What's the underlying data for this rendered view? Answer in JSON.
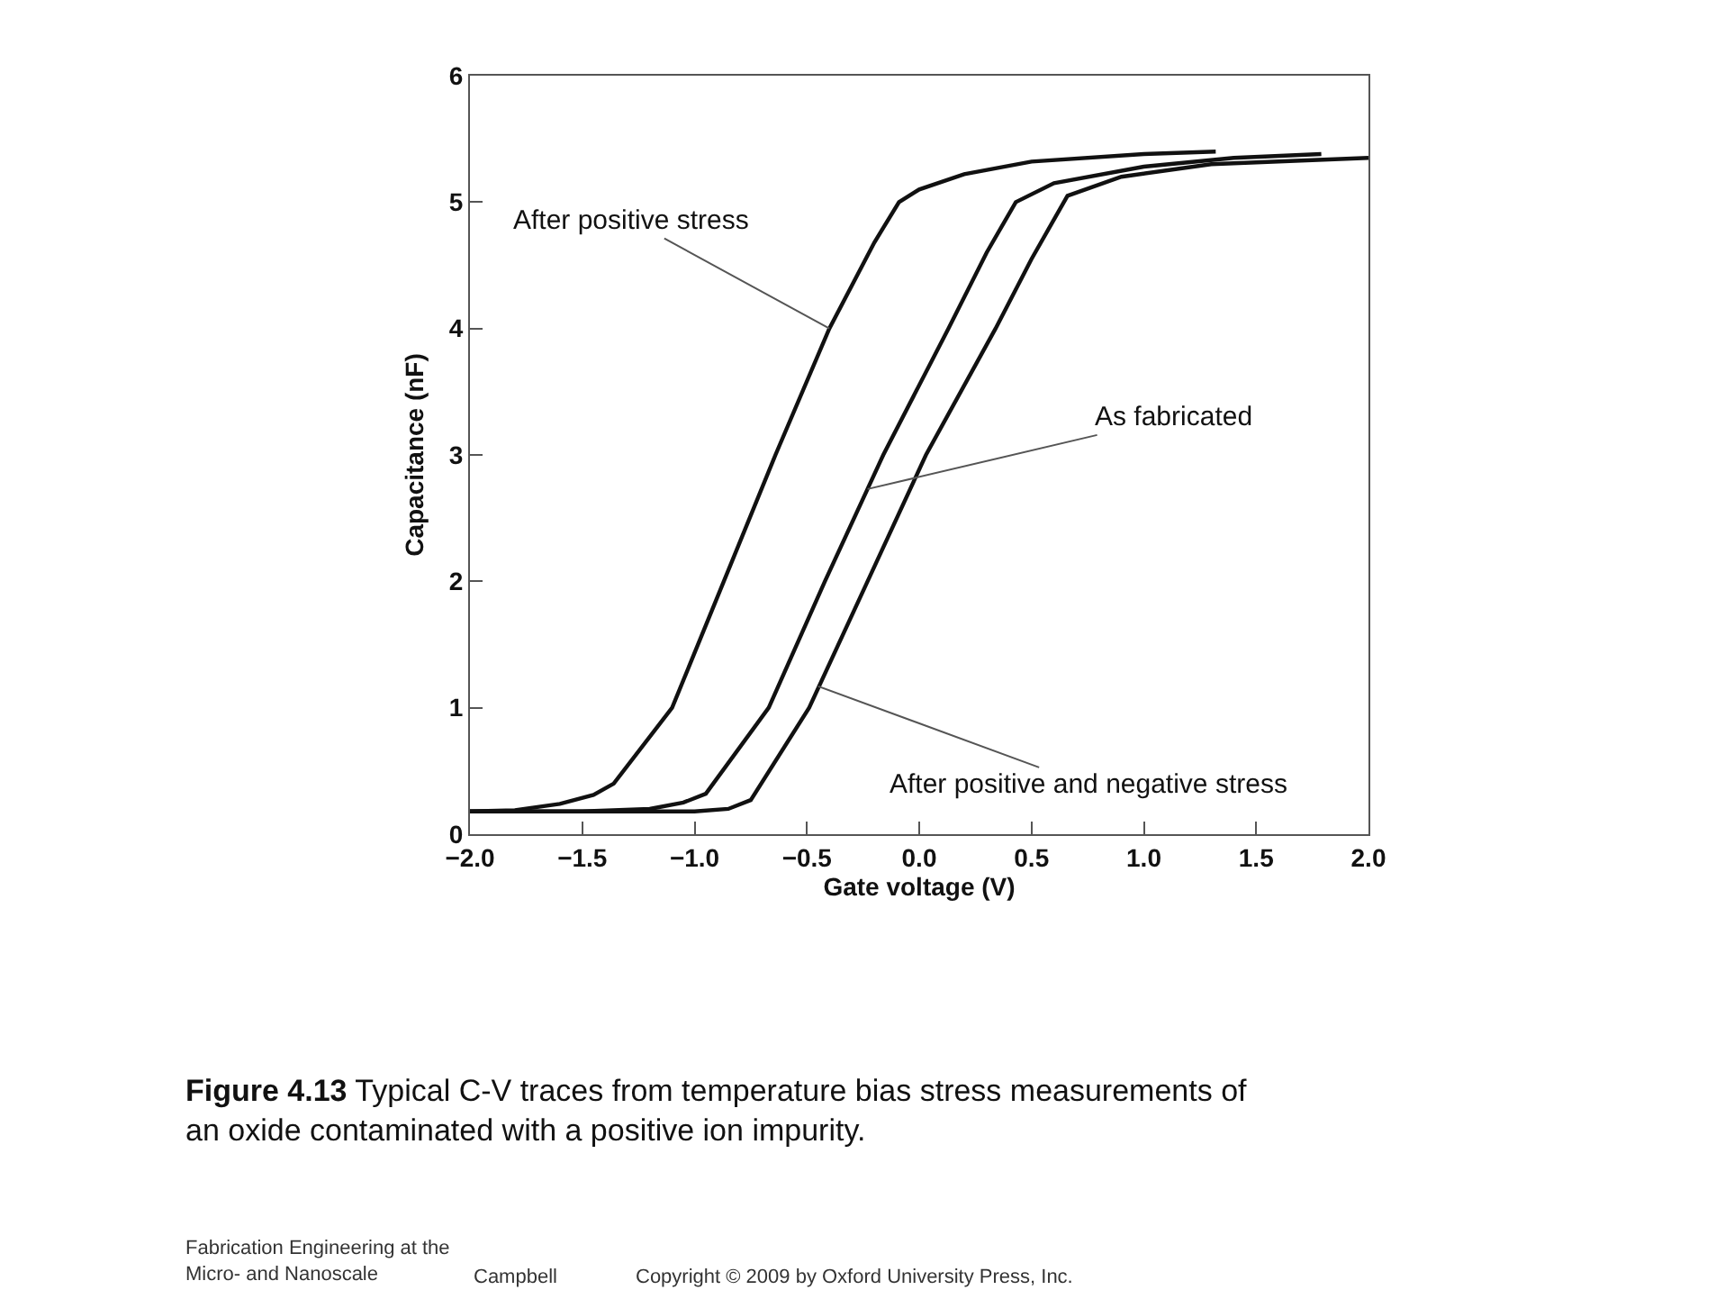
{
  "chart_data": {
    "type": "line",
    "xlabel": "Gate voltage (V)",
    "ylabel": "Capacitance (nF)",
    "xlim": [
      -2,
      2
    ],
    "xticks": [
      {
        "value": -2,
        "label": "−2.0"
      },
      {
        "value": -1.5,
        "label": "−1.5"
      },
      {
        "value": -1,
        "label": "−1.0"
      },
      {
        "value": -0.5,
        "label": "−0.5"
      },
      {
        "value": 0,
        "label": "0.0"
      },
      {
        "value": 0.5,
        "label": "0.5"
      },
      {
        "value": 1,
        "label": "1.0"
      },
      {
        "value": 1.5,
        "label": "1.5"
      },
      {
        "value": 2,
        "label": "2.0"
      }
    ],
    "ylim": [
      0,
      6
    ],
    "yticks": [
      0,
      1,
      2,
      3,
      4,
      5,
      6
    ],
    "grid": false,
    "marker": "none",
    "line_style": "solid",
    "series": [
      {
        "color": "#111111",
        "x": [
          -2,
          -1.8,
          -1.6,
          -1.45,
          -1.36,
          -1.1,
          -0.87,
          -0.64,
          -0.4,
          -0.2,
          -0.09,
          0,
          0.2,
          0.5,
          1,
          1.32
        ],
        "values": [
          0.18,
          0.19,
          0.24,
          0.31,
          0.4,
          1.0,
          2.0,
          3.0,
          4.0,
          4.68,
          5.0,
          5.1,
          5.22,
          5.32,
          5.38,
          5.4
        ]
      },
      {
        "color": "#111111",
        "x": [
          -2,
          -1.5,
          -1.2,
          -1.05,
          -0.95,
          -0.67,
          -0.42,
          -0.16,
          0.13,
          0.3,
          0.43,
          0.6,
          1,
          1.4,
          1.79
        ],
        "values": [
          0.18,
          0.18,
          0.2,
          0.25,
          0.32,
          1.0,
          2.0,
          3.0,
          4.0,
          4.6,
          5.0,
          5.15,
          5.28,
          5.35,
          5.38
        ]
      },
      {
        "color": "#111111",
        "x": [
          -2,
          -1,
          -0.85,
          -0.75,
          -0.49,
          -0.23,
          0.03,
          0.34,
          0.5,
          0.66,
          0.9,
          1.3,
          2
        ],
        "values": [
          0.18,
          0.18,
          0.2,
          0.27,
          1.0,
          2.0,
          3.0,
          4.0,
          4.55,
          5.05,
          5.2,
          5.3,
          5.35
        ]
      }
    ],
    "annotations": [
      {
        "text": "After positive stress",
        "x": -0.4,
        "y": 4.0
      },
      {
        "text": "As fabricated",
        "x": -0.23,
        "y": 2.73
      },
      {
        "text": "After positive and negative stress",
        "x": -0.45,
        "y": 1.17
      },
      "Figure 4.13 Typical C-V traces from temperature bias stress measurements of an oxide contaminated with a positive ion impurity.",
      "Fabrication Engineering at the Micro- and Nanoscale",
      "Campbell",
      "Copyright © 2009 by Oxford University Press, Inc."
    ]
  }
}
